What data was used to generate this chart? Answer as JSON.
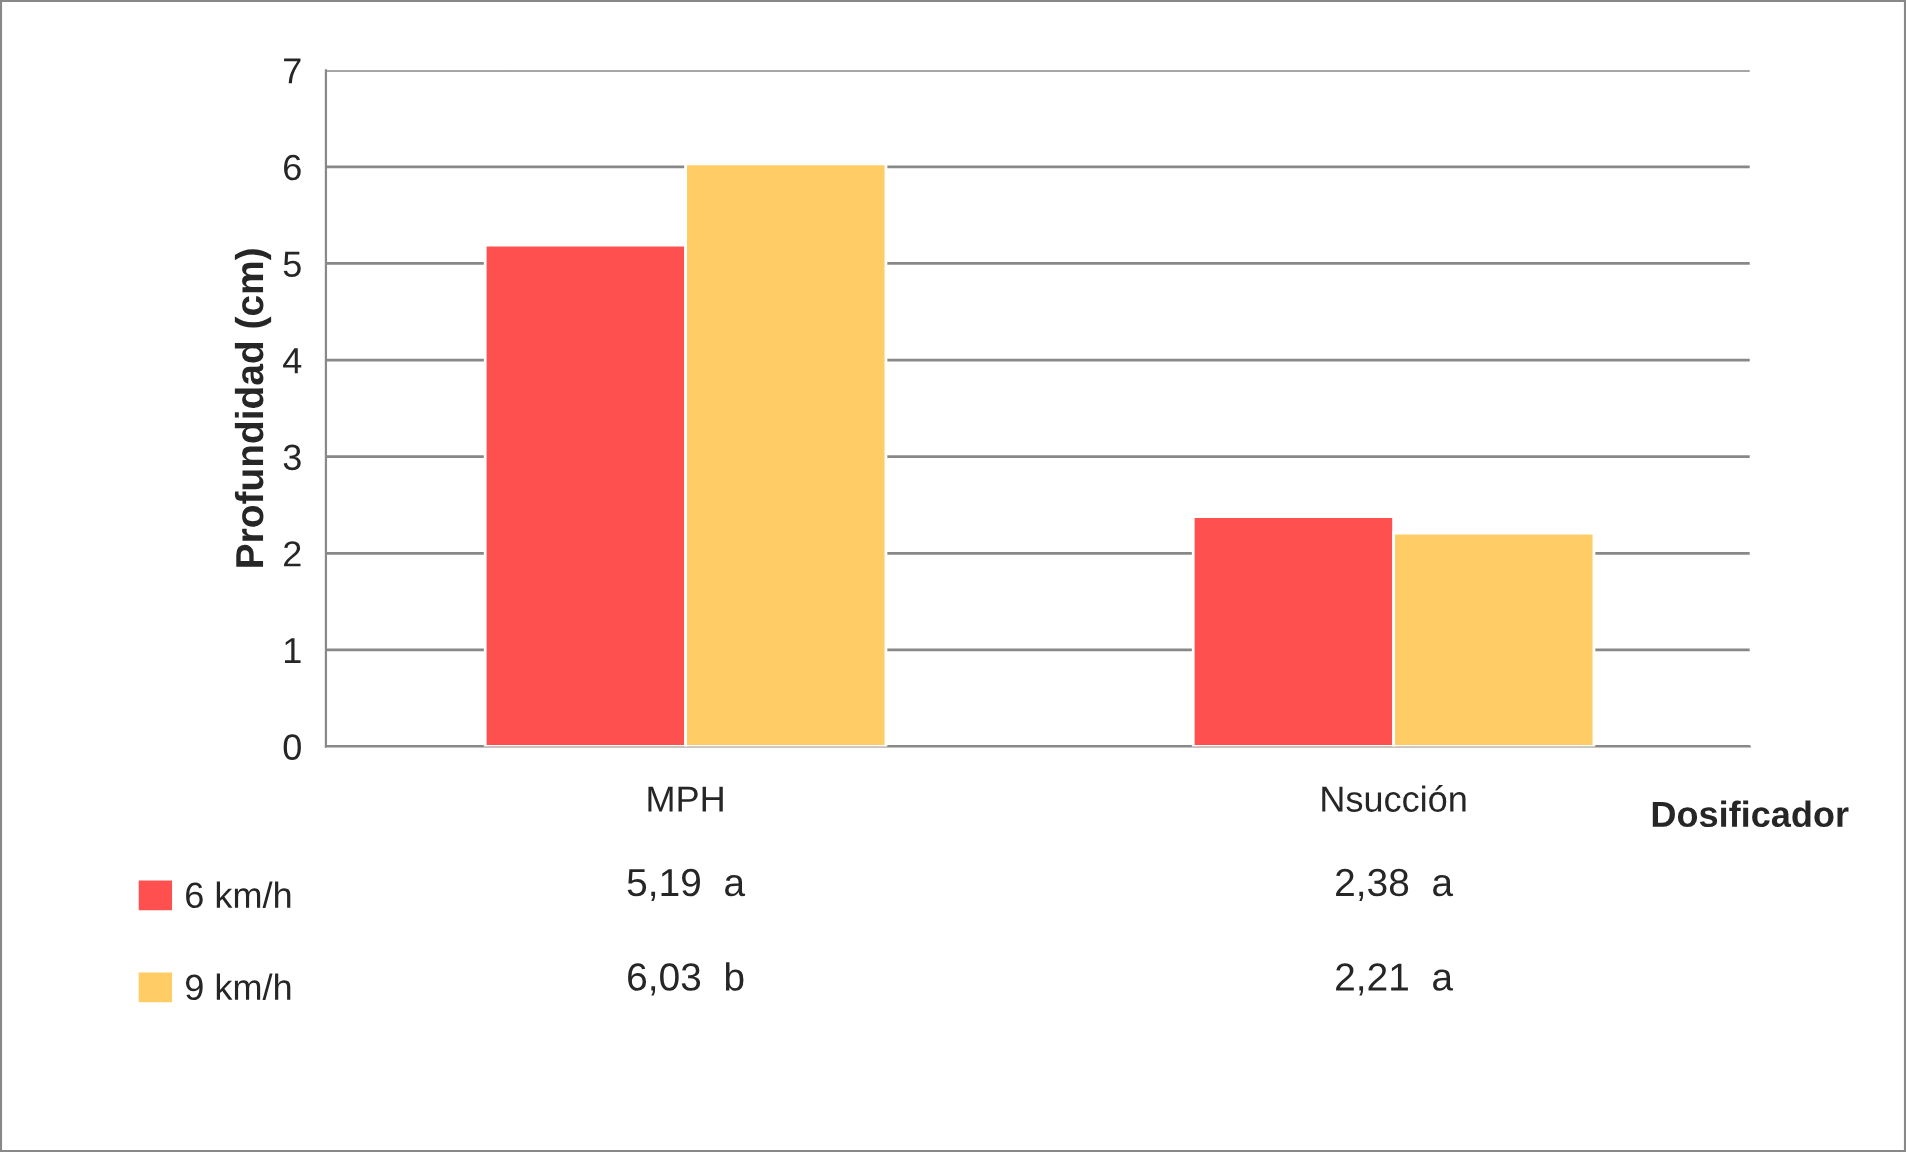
{
  "chart_data": {
    "type": "bar",
    "xlabel": "Dosificador",
    "ylabel": "Profundidad (cm)",
    "categories": [
      "MPH",
      "Nsucción"
    ],
    "series": [
      {
        "name": "6 km/h",
        "color": "#ff5050",
        "values": [
          5.19,
          2.38
        ],
        "value_labels": [
          "5,19  a",
          "2,38  a"
        ]
      },
      {
        "name": "9 km/h",
        "color": "#ffcc66",
        "values": [
          6.03,
          2.21
        ],
        "value_labels": [
          "6,03  b",
          "2,21  a"
        ]
      }
    ],
    "ylim": [
      0,
      7
    ],
    "yticks": [
      0,
      1,
      2,
      3,
      4,
      5,
      6,
      7
    ],
    "grid": "y",
    "legend": "bottom"
  }
}
